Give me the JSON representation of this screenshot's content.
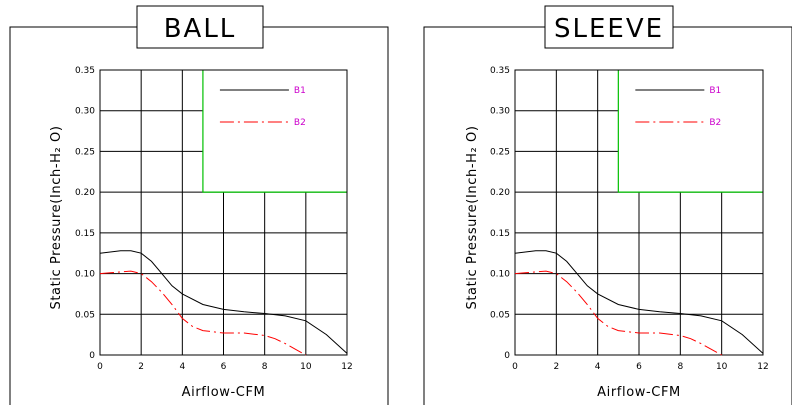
{
  "chart_data": [
    {
      "type": "line",
      "title": "BALL",
      "xlabel": "Airflow-CFM",
      "ylabel": "Static  Pressure(Inch-H₂ O)",
      "xlim": [
        0,
        12
      ],
      "ylim": [
        0,
        0.35
      ],
      "x_ticks": [
        "0",
        "2",
        "4",
        "6",
        "8",
        "10",
        "12"
      ],
      "y_ticks": [
        "0",
        "0.05",
        "0.10",
        "0.15",
        "0.20",
        "0.25",
        "0.30",
        "0.35"
      ],
      "grid": true,
      "legend_position": "top-right",
      "series": [
        {
          "name": "B1",
          "color": "#000000",
          "dash": "solid",
          "x": [
            0,
            1,
            1.5,
            2,
            2.5,
            3,
            3.5,
            4,
            5,
            6,
            7,
            8,
            9,
            10,
            11,
            12
          ],
          "y": [
            0.125,
            0.128,
            0.128,
            0.125,
            0.115,
            0.1,
            0.085,
            0.075,
            0.062,
            0.056,
            0.053,
            0.051,
            0.048,
            0.042,
            0.025,
            0.002
          ]
        },
        {
          "name": "B2",
          "color": "#ff0000",
          "dash": "dashdot",
          "x": [
            0,
            0.5,
            1,
            1.5,
            2,
            2.5,
            3,
            3.5,
            4,
            4.5,
            5,
            6,
            7,
            8,
            8.5,
            9,
            9.5,
            10
          ],
          "y": [
            0.1,
            0.101,
            0.102,
            0.103,
            0.1,
            0.09,
            0.077,
            0.062,
            0.045,
            0.035,
            0.03,
            0.027,
            0.027,
            0.024,
            0.02,
            0.014,
            0.007,
            0.0
          ]
        }
      ]
    },
    {
      "type": "line",
      "title": "SLEEVE",
      "xlabel": "Airflow-CFM",
      "ylabel": "Static  Pressure(Inch-H₂ O)",
      "xlim": [
        0,
        12
      ],
      "ylim": [
        0,
        0.35
      ],
      "x_ticks": [
        "0",
        "2",
        "4",
        "6",
        "8",
        "10",
        "12"
      ],
      "y_ticks": [
        "0",
        "0.05",
        "0.10",
        "0.15",
        "0.20",
        "0.25",
        "0.30",
        "0.35"
      ],
      "grid": true,
      "legend_position": "top-right",
      "series": [
        {
          "name": "B1",
          "color": "#000000",
          "dash": "solid",
          "x": [
            0,
            1,
            1.5,
            2,
            2.5,
            3,
            3.5,
            4,
            5,
            6,
            7,
            8,
            9,
            10,
            11,
            12
          ],
          "y": [
            0.125,
            0.128,
            0.128,
            0.125,
            0.115,
            0.1,
            0.085,
            0.075,
            0.062,
            0.056,
            0.053,
            0.051,
            0.048,
            0.042,
            0.025,
            0.002
          ]
        },
        {
          "name": "B2",
          "color": "#ff0000",
          "dash": "dashdot",
          "x": [
            0,
            0.5,
            1,
            1.5,
            2,
            2.5,
            3,
            3.5,
            4,
            4.5,
            5,
            6,
            7,
            8,
            8.5,
            9,
            9.5,
            10
          ],
          "y": [
            0.1,
            0.101,
            0.102,
            0.103,
            0.1,
            0.09,
            0.077,
            0.062,
            0.045,
            0.035,
            0.03,
            0.027,
            0.027,
            0.024,
            0.02,
            0.014,
            0.007,
            0.0
          ]
        }
      ]
    }
  ],
  "style": {
    "grid_color": "#000000",
    "legend_box_color": "#00c000",
    "legend_text_color": "#cc00cc"
  }
}
